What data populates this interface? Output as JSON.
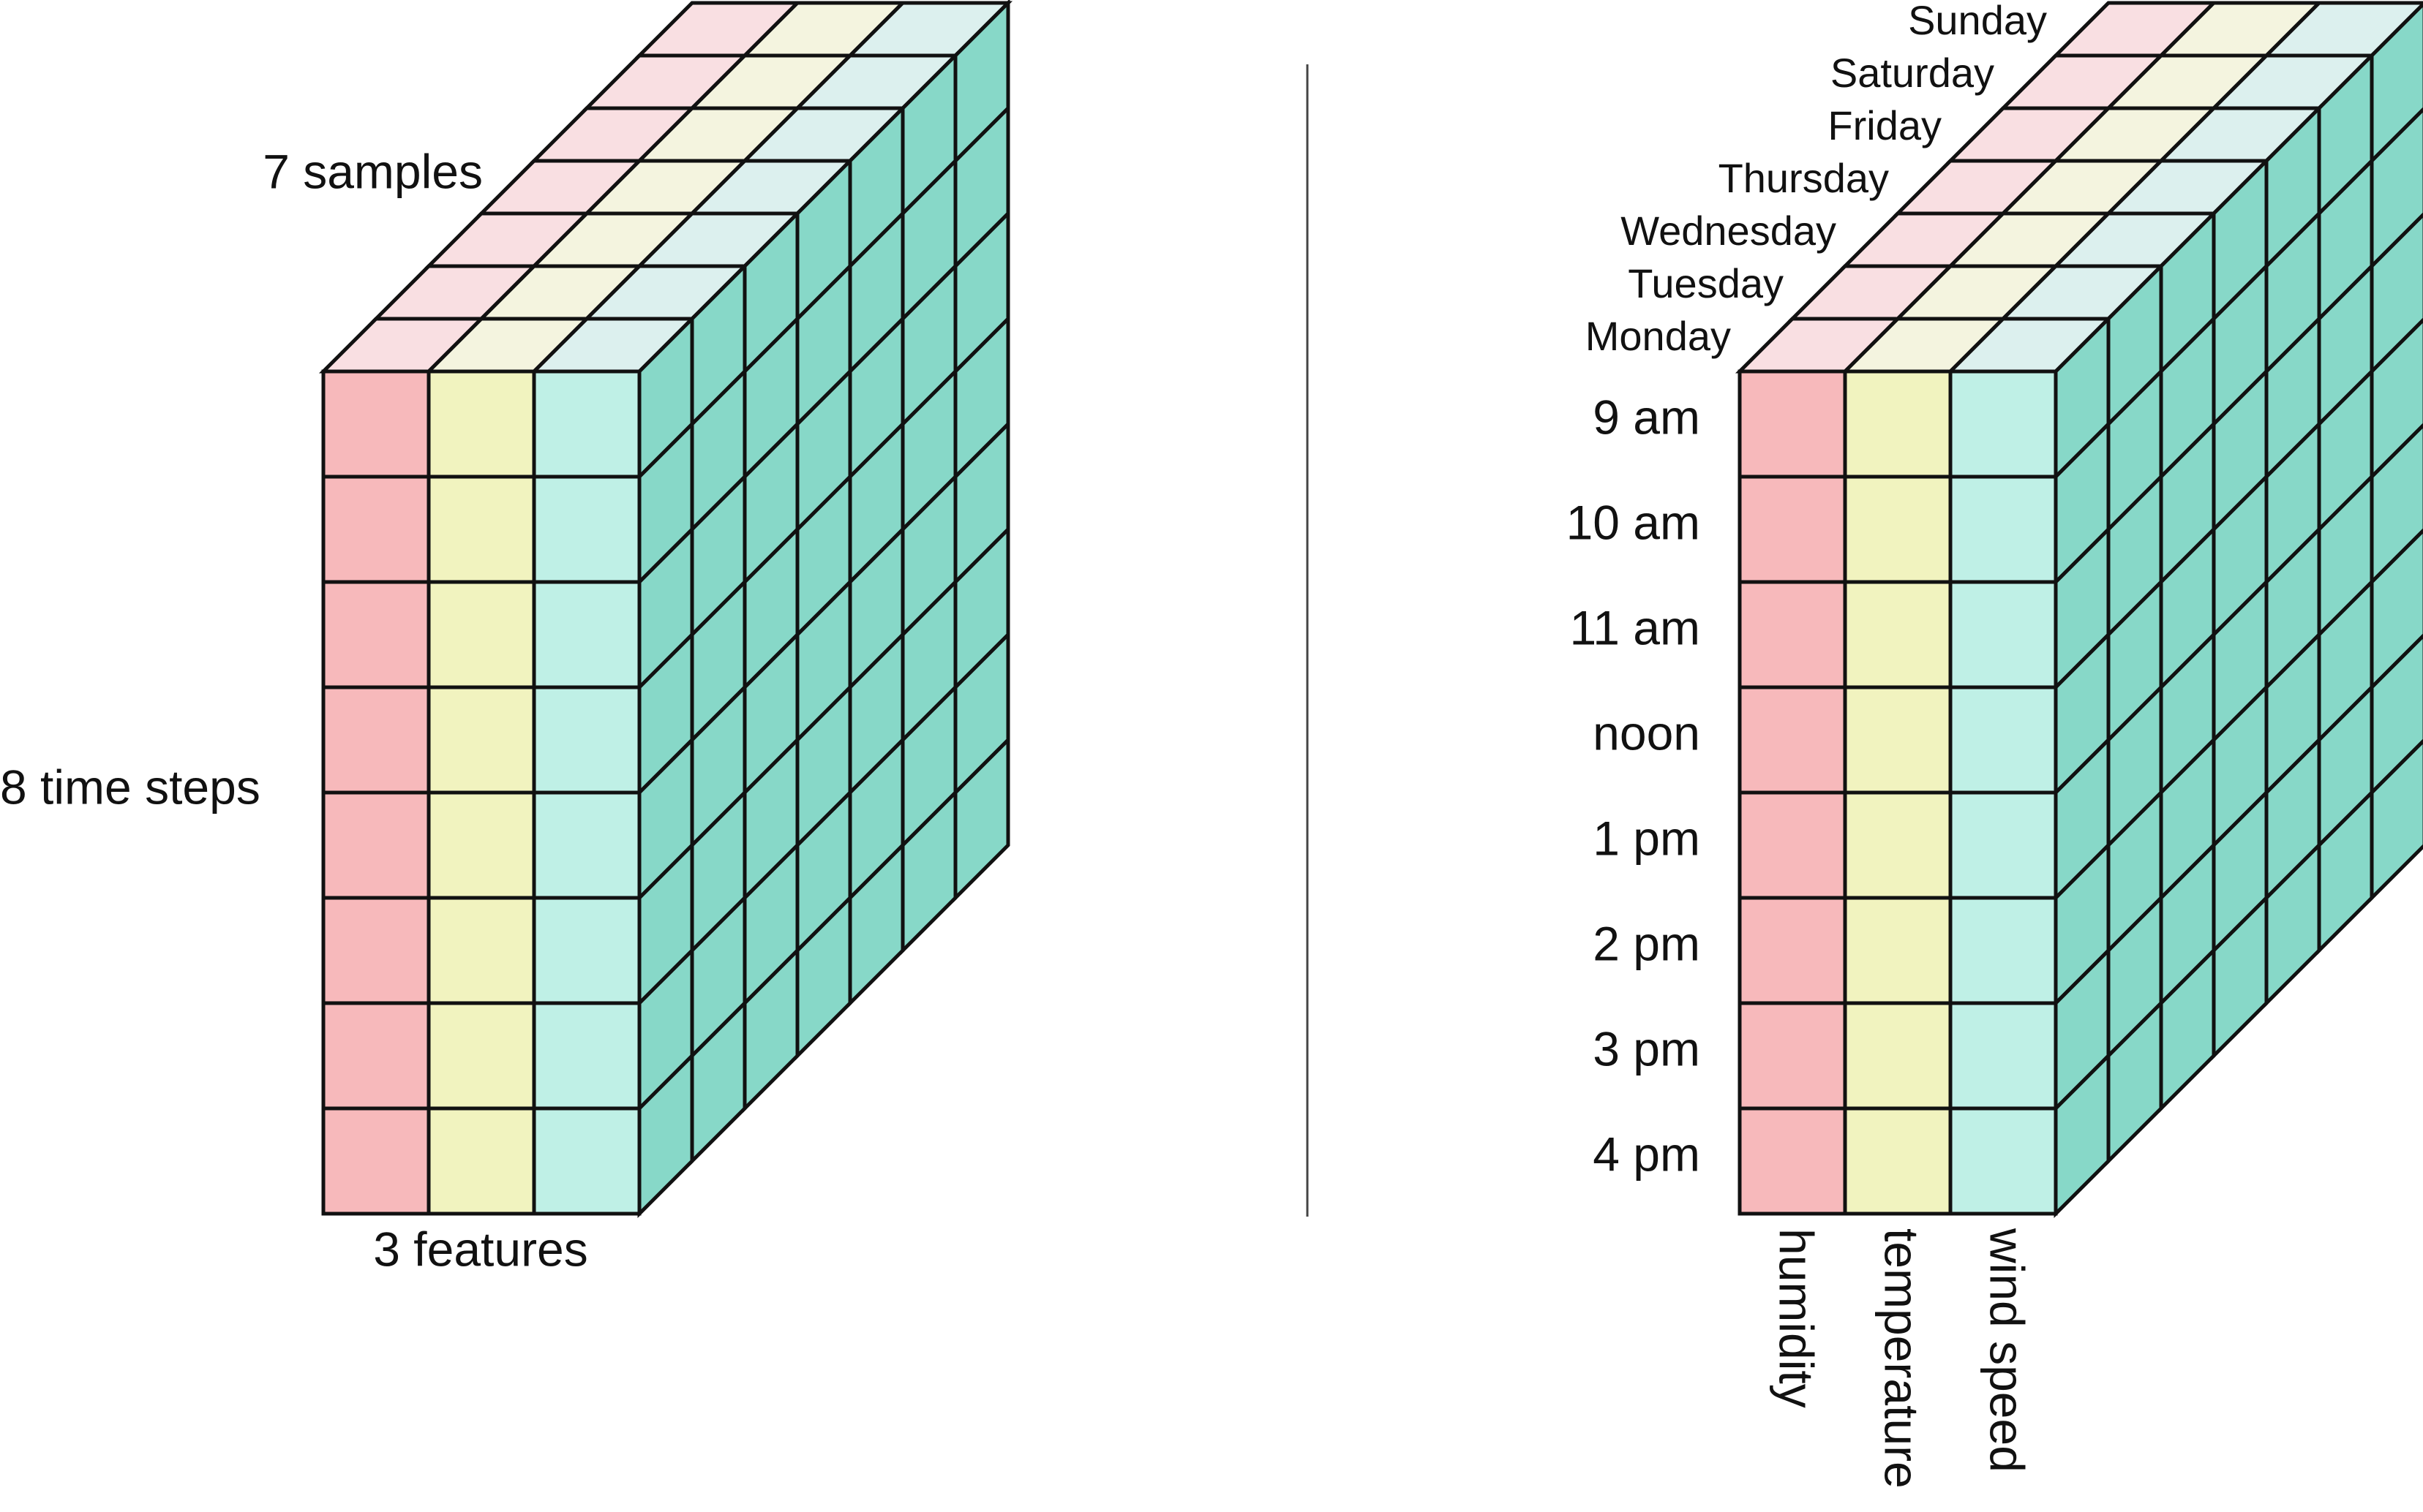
{
  "colors": {
    "background": "#ffffff",
    "front": [
      "#f7b9bb",
      "#f1f3bf",
      "#bff0e6"
    ],
    "top": [
      "#f9dfe2",
      "#f4f4df",
      "#dcf0ee"
    ],
    "side": "#87d8c8",
    "stroke": "#111111",
    "divider": "#444444"
  },
  "left_cube": {
    "samples_label": "7 samples",
    "time_steps_label": "8 time steps",
    "features_label": "3 features"
  },
  "right_cube": {
    "days": [
      "Monday",
      "Tuesday",
      "Wednesday",
      "Thursday",
      "Friday",
      "Saturday",
      "Sunday"
    ],
    "times": [
      "9 am",
      "10 am",
      "11 am",
      "noon",
      "1 pm",
      "2 pm",
      "3 pm",
      "4 pm"
    ],
    "features": [
      "humidity",
      "temperature",
      "wind speed"
    ]
  },
  "dimensions": {
    "rows": 8,
    "cols": 3,
    "depth": 7
  }
}
